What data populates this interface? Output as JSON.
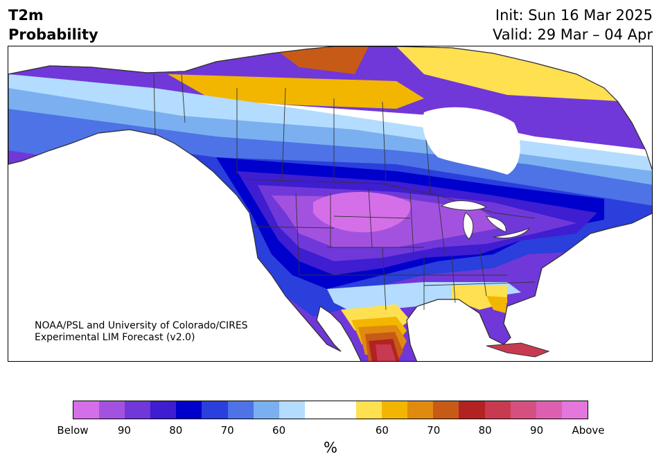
{
  "header": {
    "variable": "T2m",
    "quantity": "Probability",
    "init": "Init: Sun 16 Mar 2025",
    "valid": "Valid: 29 Mar – 04 Apr"
  },
  "credit": {
    "line1": "NOAA/PSL and University of Colorado/CIRES",
    "line2": "Experimental LIM Forecast (v2.0)"
  },
  "colorbar": {
    "colors": [
      "#d56fe8",
      "#a352e0",
      "#7038d8",
      "#3f1dd0",
      "#0000cc",
      "#2a3fdc",
      "#4d73e6",
      "#7ab0f0",
      "#b3dcff",
      "#ffffff",
      "#ffffff",
      "#ffe050",
      "#f2b600",
      "#e08a10",
      "#c85a18",
      "#b22222",
      "#c83a50",
      "#d55080",
      "#dd60b0",
      "#e477de"
    ],
    "ticks": [
      "Below",
      "90",
      "80",
      "70",
      "60",
      "60",
      "70",
      "80",
      "90",
      "Above"
    ],
    "unit": "%"
  },
  "map": {
    "colors": {
      "land_neutral": "#ffffff",
      "b60": "#b3dcff",
      "b65": "#7ab0f0",
      "b70": "#4d73e6",
      "b75": "#2a3fdc",
      "b80": "#0000cc",
      "b85": "#3f1dd0",
      "b90": "#7038d8",
      "b95": "#a352e0",
      "b100": "#d56fe8",
      "a60": "#ffe050",
      "a65": "#f2b600",
      "a70": "#e08a10",
      "a75": "#c85a18",
      "a80": "#b22222",
      "a85": "#c83a50",
      "a90": "#d55080",
      "border": "#333333"
    }
  }
}
